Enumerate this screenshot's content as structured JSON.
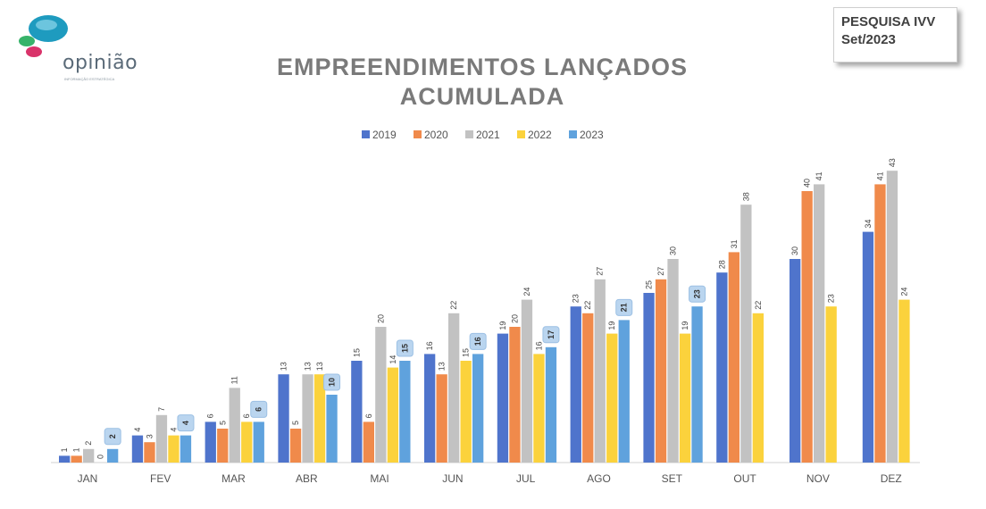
{
  "logo": {
    "brand": "opinião",
    "tagline": "INFORMAÇÃO ESTRATÉGICA"
  },
  "stamp": {
    "line1": "PESQUISA IVV",
    "line2": "Set/2023"
  },
  "colors": {
    "2019": "#4f74cc",
    "2020": "#f08a4b",
    "2021": "#c2c2c2",
    "2022": "#fbd23c",
    "2023": "#5fa2dd",
    "title": "#7a7a7a",
    "callout": "#bad5ef"
  },
  "chart_data": {
    "type": "bar",
    "title": "EMPREENDIMENTOS LANÇADOS ACUMULADA",
    "title_lines": [
      "EMPREENDIMENTOS LANÇADOS",
      "ACUMULADA"
    ],
    "legend_position": "top",
    "grid": false,
    "ylim": [
      0,
      45
    ],
    "categories": [
      "JAN",
      "FEV",
      "MAR",
      "ABR",
      "MAI",
      "JUN",
      "JUL",
      "AGO",
      "SET",
      "OUT",
      "NOV",
      "DEZ"
    ],
    "series": [
      {
        "name": "2019",
        "values": [
          1,
          4,
          6,
          13,
          15,
          16,
          19,
          23,
          25,
          28,
          30,
          34
        ]
      },
      {
        "name": "2020",
        "values": [
          1,
          3,
          5,
          5,
          6,
          13,
          20,
          22,
          27,
          31,
          40,
          41
        ]
      },
      {
        "name": "2021",
        "values": [
          2,
          7,
          11,
          13,
          20,
          22,
          24,
          27,
          30,
          38,
          41,
          43
        ]
      },
      {
        "name": "2022",
        "values": [
          0,
          4,
          6,
          13,
          14,
          15,
          16,
          19,
          19,
          22,
          23,
          24
        ]
      },
      {
        "name": "2023",
        "values": [
          2,
          4,
          6,
          10,
          15,
          16,
          17,
          21,
          23,
          null,
          null,
          null
        ]
      }
    ]
  }
}
